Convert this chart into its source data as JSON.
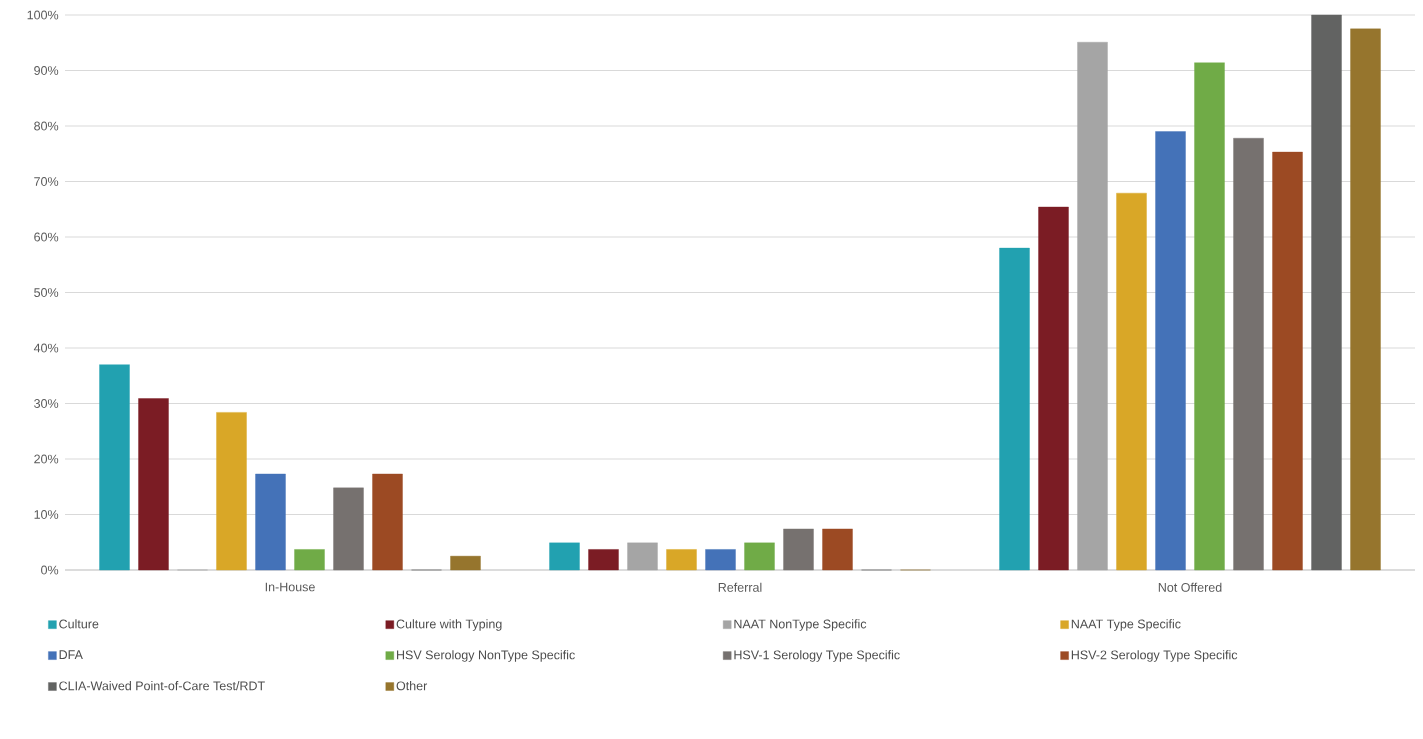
{
  "chart_data": {
    "type": "bar",
    "categories": [
      "In-House",
      "Referral",
      "Not Offered"
    ],
    "series": [
      {
        "name": "Culture",
        "color": "#22a1b0",
        "values": [
          37.0,
          4.9,
          58.0
        ]
      },
      {
        "name": "Culture with Typing",
        "color": "#7b1c24",
        "values": [
          30.9,
          3.7,
          65.4
        ]
      },
      {
        "name": "NAAT NonType Specific",
        "color": "#a5a5a5",
        "values": [
          0,
          4.9,
          95.1
        ]
      },
      {
        "name": "NAAT Type Specific",
        "color": "#d9a727",
        "values": [
          28.4,
          3.7,
          67.9
        ]
      },
      {
        "name": "DFA",
        "color": "#4472b8",
        "values": [
          17.3,
          3.7,
          79.0
        ]
      },
      {
        "name": "HSV Serology NonType Specific",
        "color": "#70ab47",
        "values": [
          3.7,
          4.9,
          91.4
        ]
      },
      {
        "name": "HSV-1 Serology Type Specific",
        "color": "#76716f",
        "values": [
          14.8,
          7.4,
          77.8
        ]
      },
      {
        "name": "HSV-2 Serology Type Specific",
        "color": "#9c4a23",
        "values": [
          17.3,
          7.4,
          75.3
        ]
      },
      {
        "name": "CLIA-Waived Point-of-Care Test/RDT",
        "color": "#626362",
        "values": [
          0,
          0,
          100
        ]
      },
      {
        "name": "Other",
        "color": "#96752d",
        "values": [
          2.5,
          0,
          97.5
        ]
      }
    ],
    "ylim": [
      0,
      100
    ],
    "yticks": [
      {
        "value": 0,
        "label": "0%"
      },
      {
        "value": 10,
        "label": "10%"
      },
      {
        "value": 20,
        "label": "20%"
      },
      {
        "value": 30,
        "label": "30%"
      },
      {
        "value": 40,
        "label": "40%"
      },
      {
        "value": 50,
        "label": "50%"
      },
      {
        "value": 60,
        "label": "60%"
      },
      {
        "value": 70,
        "label": "70%"
      },
      {
        "value": 80,
        "label": "80%"
      },
      {
        "value": 90,
        "label": "90%"
      },
      {
        "value": 100,
        "label": "100%"
      }
    ],
    "grid": "y",
    "legend": "bottom"
  }
}
